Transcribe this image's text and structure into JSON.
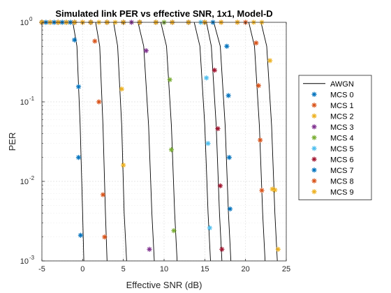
{
  "chart_data": {
    "type": "scatter",
    "title": "Simulated link PER vs effective SNR, 1x1, Model-D",
    "xlabel": "Effective SNR (dB)",
    "ylabel": "PER",
    "xlim": [
      -5,
      25
    ],
    "ylim": [
      0.001,
      1
    ],
    "yscale": "log",
    "x_ticks": [
      "-5",
      "0",
      "5",
      "10",
      "15",
      "20",
      "25"
    ],
    "y_ticks": [
      {
        "base": "10",
        "exp": "-3",
        "value": 0.001
      },
      {
        "base": "10",
        "exp": "-2",
        "value": 0.01
      },
      {
        "base": "10",
        "exp": "-1",
        "value": 0.1
      },
      {
        "base": "10",
        "exp": "0",
        "value": 1
      }
    ],
    "grid": true,
    "legend_position": "outside-right",
    "awgn": {
      "name": "AWGN",
      "color": "#000000",
      "curves": [
        {
          "x": [
            -1.2,
            -0.7,
            -0.3,
            0.0,
            0.15
          ],
          "y": [
            1,
            0.5,
            0.05,
            0.004,
            0.001
          ]
        },
        {
          "x": [
            1.6,
            2.1,
            2.5,
            2.8,
            3.0
          ],
          "y": [
            1,
            0.5,
            0.05,
            0.004,
            0.001
          ]
        },
        {
          "x": [
            3.8,
            4.3,
            4.8,
            5.1,
            5.4
          ],
          "y": [
            1,
            0.5,
            0.05,
            0.004,
            0.001
          ]
        },
        {
          "x": [
            6.8,
            7.5,
            8.1,
            8.5,
            8.8
          ],
          "y": [
            1,
            0.5,
            0.05,
            0.004,
            0.001
          ]
        },
        {
          "x": [
            9.6,
            10.3,
            10.9,
            11.3,
            11.6
          ],
          "y": [
            1,
            0.5,
            0.05,
            0.004,
            0.001
          ]
        },
        {
          "x": [
            13.7,
            14.4,
            15.0,
            15.4,
            15.7
          ],
          "y": [
            1,
            0.5,
            0.05,
            0.004,
            0.001
          ]
        },
        {
          "x": [
            15.2,
            15.8,
            16.4,
            16.8,
            17.1
          ],
          "y": [
            1,
            0.5,
            0.05,
            0.004,
            0.001
          ]
        },
        {
          "x": [
            16.1,
            16.9,
            17.5,
            17.9,
            18.2
          ],
          "y": [
            1,
            0.5,
            0.05,
            0.004,
            0.001
          ]
        },
        {
          "x": [
            20.4,
            21.1,
            21.7,
            22.1,
            22.4
          ],
          "y": [
            1,
            0.5,
            0.05,
            0.004,
            0.001
          ]
        },
        {
          "x": [
            21.9,
            22.6,
            23.2,
            23.6,
            23.9
          ],
          "y": [
            1,
            0.5,
            0.05,
            0.004,
            0.001
          ]
        }
      ]
    },
    "series": [
      {
        "name": "MCS 0",
        "color": "#0072BD",
        "x": [
          -5,
          -4.5,
          -4,
          -3.5,
          -3,
          -2.5,
          -2,
          -1.5,
          -1,
          -0.5,
          -0.5,
          -0.25
        ],
        "y": [
          1,
          1,
          1,
          1,
          1,
          1,
          1,
          1,
          0.6,
          0.155,
          0.02,
          0.0021
        ]
      },
      {
        "name": "MCS 1",
        "color": "#D95319",
        "x": [
          -5,
          -4,
          -3,
          -2,
          -1,
          0,
          1,
          1.5,
          2,
          2.5,
          2.7
        ],
        "y": [
          1,
          1,
          1,
          1,
          1,
          1,
          1,
          0.58,
          0.1,
          0.0068,
          0.002
        ]
      },
      {
        "name": "MCS 2",
        "color": "#EDB120",
        "x": [
          -5,
          -4,
          -3,
          -2,
          -1,
          0,
          1,
          2,
          3,
          4,
          4.8,
          5.0
        ],
        "y": [
          1,
          1,
          1,
          1,
          1,
          1,
          1,
          1,
          1,
          1,
          0.145,
          0.016
        ]
      },
      {
        "name": "MCS 3",
        "color": "#7E2F8E",
        "x": [
          -5,
          -3,
          -1,
          1,
          3,
          5,
          6,
          7,
          7.8,
          8.2
        ],
        "y": [
          1,
          1,
          1,
          1,
          1,
          1,
          1,
          1,
          0.44,
          0.0014
        ]
      },
      {
        "name": "MCS 4",
        "color": "#77AC30",
        "x": [
          -5,
          -3,
          -1,
          1,
          3,
          5,
          7,
          9,
          10,
          10.7,
          10.9,
          11.2
        ],
        "y": [
          1,
          1,
          1,
          1,
          1,
          1,
          1,
          1,
          1,
          0.19,
          0.025,
          0.0024
        ]
      },
      {
        "name": "MCS 5",
        "color": "#4DBEEE",
        "x": [
          -5,
          -3,
          -1,
          1,
          3,
          5,
          7,
          9,
          11,
          13,
          14.5,
          15.2,
          15.4,
          15.6
        ],
        "y": [
          1,
          1,
          1,
          1,
          1,
          1,
          1,
          1,
          1,
          1,
          1,
          0.2,
          0.03,
          0.0026
        ]
      },
      {
        "name": "MCS 6",
        "color": "#A2142F",
        "x": [
          -5,
          -3,
          -1,
          1,
          3,
          5,
          7,
          9,
          11,
          13,
          15,
          16.2,
          16.6,
          16.9,
          17.1
        ],
        "y": [
          1,
          1,
          1,
          1,
          1,
          1,
          1,
          1,
          1,
          1,
          1,
          0.25,
          0.046,
          0.0088,
          0.0014
        ]
      },
      {
        "name": "MCS 7",
        "color": "#0072BD",
        "x": [
          -5,
          -3,
          -1,
          1,
          3,
          5,
          7,
          9,
          11,
          13,
          15,
          16,
          17.7,
          17.9,
          18.0,
          18.1
        ],
        "y": [
          1,
          1,
          1,
          1,
          1,
          1,
          1,
          1,
          1,
          1,
          1,
          1,
          0.5,
          0.12,
          0.02,
          0.0045
        ]
      },
      {
        "name": "MCS 8",
        "color": "#D95319",
        "x": [
          -5,
          -3,
          -1,
          1,
          3,
          5,
          7,
          9,
          11,
          13,
          15,
          17,
          19,
          20,
          21.3,
          21.6,
          21.8,
          22.0
        ],
        "y": [
          1,
          1,
          1,
          1,
          1,
          1,
          1,
          1,
          1,
          1,
          1,
          1,
          1,
          1,
          0.55,
          0.16,
          0.033,
          0.0077
        ]
      },
      {
        "name": "MCS 9",
        "color": "#EDB120",
        "x": [
          -5,
          -3,
          -1,
          1,
          3,
          5,
          7,
          9,
          11,
          13,
          15,
          17,
          19,
          21,
          22,
          23.0,
          23.3,
          23.6,
          24.0
        ],
        "y": [
          1,
          1,
          1,
          1,
          1,
          1,
          1,
          1,
          1,
          1,
          1,
          1,
          1,
          1,
          1,
          0.33,
          0.008,
          0.0078,
          0.0014
        ]
      }
    ]
  }
}
